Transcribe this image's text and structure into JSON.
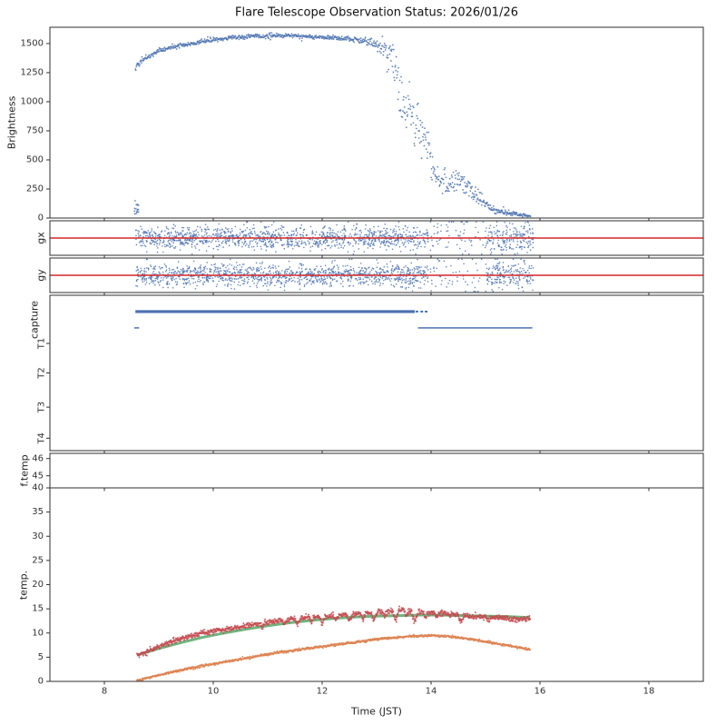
{
  "chart_data": {
    "type": "scatter",
    "title": "Flare Telescope Observation Status: 2026/01/26",
    "xlabel": "Time (JST)",
    "xlim": [
      7,
      19
    ],
    "xticks": [
      8,
      10,
      12,
      14,
      16,
      18
    ],
    "palette": {
      "marker_blue": "#4C72B0",
      "reference_red": "#d62728",
      "temp_red": "#C44E52",
      "temp_green": "#55A868",
      "temp_orange": "#DD8452"
    },
    "panels": [
      {
        "id": "brightness",
        "ylabel": "Brightness",
        "ylim": [
          0,
          1640
        ],
        "yticks": [
          0,
          250,
          500,
          750,
          1000,
          1250,
          1500
        ],
        "series": [
          {
            "name": "brightness-points",
            "type": "noisy-scatter",
            "color": "#4C72B0",
            "r": 0.9,
            "dt": 0.008,
            "keypoints": [
              [
                8.57,
                1280,
                25
              ],
              [
                8.63,
                1325,
                18
              ],
              [
                8.72,
                1365,
                14
              ],
              [
                8.85,
                1395,
                12
              ],
              [
                9.0,
                1435,
                11
              ],
              [
                9.2,
                1465,
                10
              ],
              [
                9.4,
                1488,
                10
              ],
              [
                9.6,
                1502,
                10
              ],
              [
                9.8,
                1516,
                10
              ],
              [
                10.0,
                1530,
                10
              ],
              [
                10.2,
                1544,
                10
              ],
              [
                10.45,
                1554,
                10
              ],
              [
                10.7,
                1562,
                10
              ],
              [
                10.95,
                1565,
                10
              ],
              [
                11.2,
                1567,
                10
              ],
              [
                11.45,
                1566,
                10
              ],
              [
                11.7,
                1560,
                10
              ],
              [
                11.95,
                1556,
                10
              ],
              [
                12.2,
                1549,
                10
              ],
              [
                12.45,
                1543,
                10
              ],
              [
                12.65,
                1535,
                12
              ],
              [
                12.8,
                1522,
                15
              ],
              [
                12.92,
                1506,
                18
              ],
              [
                13.05,
                1470,
                26
              ],
              [
                13.18,
                1428,
                45
              ],
              [
                13.3,
                1372,
                70
              ],
              [
                13.38,
                1190,
                110
              ],
              [
                13.45,
                1000,
                130
              ],
              [
                13.52,
                930,
                125
              ],
              [
                13.58,
                1030,
                120
              ],
              [
                13.64,
                860,
                115
              ],
              [
                13.7,
                770,
                110
              ],
              [
                13.76,
                820,
                100
              ],
              [
                13.82,
                700,
                100
              ],
              [
                13.88,
                730,
                95
              ],
              [
                13.94,
                630,
                90
              ],
              [
                14.0,
                480,
                75
              ],
              [
                14.06,
                390,
                65
              ],
              [
                14.12,
                330,
                60
              ],
              [
                14.18,
                375,
                60
              ],
              [
                14.25,
                315,
                55
              ],
              [
                14.33,
                270,
                50
              ],
              [
                14.42,
                300,
                55
              ],
              [
                14.52,
                330,
                55
              ],
              [
                14.62,
                285,
                50
              ],
              [
                14.72,
                240,
                45
              ],
              [
                14.82,
                200,
                40
              ],
              [
                14.92,
                150,
                33
              ],
              [
                15.02,
                100,
                24
              ],
              [
                15.12,
                75,
                18
              ],
              [
                15.22,
                60,
                14
              ],
              [
                15.32,
                50,
                12
              ],
              [
                15.42,
                42,
                10
              ],
              [
                15.52,
                35,
                8
              ],
              [
                15.62,
                28,
                7
              ],
              [
                15.72,
                24,
                6
              ],
              [
                15.83,
                20,
                5
              ]
            ]
          },
          {
            "name": "startup-cluster",
            "type": "cluster",
            "color": "#4C72B0",
            "r": 0.9,
            "n": 16,
            "trange": [
              8.55,
              8.63
            ],
            "vrange": [
              20,
              150
            ]
          }
        ]
      },
      {
        "id": "gx",
        "ylabel": "gx",
        "ylim": [
          -1,
          1
        ],
        "refline": {
          "value": 0,
          "color": "#d62728"
        },
        "series": [
          {
            "name": "gx-scatter",
            "type": "band-scatter",
            "color": "#4C72B0",
            "r": 0.8,
            "center": 0,
            "segments": [
              [
                8.58,
                13.95,
                0.33,
                230
              ],
              [
                13.98,
                14.75,
                0.55,
                70
              ],
              [
                14.75,
                15.0,
                0.5,
                40
              ],
              [
                15.0,
                15.88,
                0.45,
                220
              ]
            ]
          }
        ]
      },
      {
        "id": "gy",
        "ylabel": "gy",
        "ylim": [
          -1,
          1
        ],
        "refline": {
          "value": 0,
          "color": "#d62728"
        },
        "series": [
          {
            "name": "gy-scatter",
            "type": "band-scatter",
            "color": "#4C72B0",
            "r": 0.8,
            "center": 0,
            "segments": [
              [
                8.58,
                13.95,
                0.33,
                230
              ],
              [
                13.98,
                14.45,
                0.55,
                60
              ],
              [
                14.45,
                14.95,
                0.7,
                50
              ],
              [
                15.0,
                15.88,
                0.45,
                220
              ]
            ]
          }
        ]
      },
      {
        "id": "capture",
        "ylabel": "capture",
        "rows": [
          "T1",
          "T2",
          "T3",
          "T4"
        ],
        "capture": {
          "color": "#4C72B0",
          "segments": [
            {
              "frac": 0.105,
              "t0": 8.57,
              "t1": 13.7,
              "lw": 3.2
            },
            {
              "frac": 0.21,
              "t0": 8.55,
              "t1": 8.64,
              "lw": 1.5
            },
            {
              "frac": 0.21,
              "t0": 13.76,
              "t1": 15.86,
              "lw": 1.5
            }
          ],
          "dots": [
            [
              13.74,
              0.105
            ],
            [
              13.83,
              0.105
            ],
            [
              13.91,
              0.105
            ]
          ]
        }
      },
      {
        "id": "ftemp",
        "ylabel": "f.temp",
        "ylim": [
          44.3,
          46.3
        ],
        "yticks": [
          45,
          46
        ],
        "series": []
      },
      {
        "id": "temp",
        "ylabel": "temp.",
        "ylim": [
          0,
          40
        ],
        "yticks": [
          0,
          5,
          10,
          15,
          20,
          25,
          30,
          35,
          40
        ],
        "series": [
          {
            "name": "orange-series",
            "type": "noisy-scatter",
            "color": "#DD8452",
            "r": 1.0,
            "dt": 0.007,
            "sigma": 0.12,
            "keypoints": [
              [
                8.6,
                0.2
              ],
              [
                8.8,
                0.7
              ],
              [
                9.0,
                1.3
              ],
              [
                9.2,
                1.8
              ],
              [
                9.4,
                2.3
              ],
              [
                9.6,
                2.8
              ],
              [
                9.8,
                3.2
              ],
              [
                10.0,
                3.6
              ],
              [
                10.2,
                4.0
              ],
              [
                10.4,
                4.4
              ],
              [
                10.6,
                4.8
              ],
              [
                10.8,
                5.2
              ],
              [
                11.0,
                5.6
              ],
              [
                11.2,
                6.0
              ],
              [
                11.4,
                6.3
              ],
              [
                11.6,
                6.6
              ],
              [
                11.8,
                6.9
              ],
              [
                12.0,
                7.2
              ],
              [
                12.2,
                7.5
              ],
              [
                12.4,
                7.8
              ],
              [
                12.6,
                8.1
              ],
              [
                12.8,
                8.4
              ],
              [
                13.0,
                8.7
              ],
              [
                13.2,
                8.9
              ],
              [
                13.4,
                9.1
              ],
              [
                13.6,
                9.3
              ],
              [
                13.8,
                9.4
              ],
              [
                14.0,
                9.5
              ],
              [
                14.2,
                9.4
              ],
              [
                14.4,
                9.2
              ],
              [
                14.7,
                8.8
              ],
              [
                15.0,
                8.2
              ],
              [
                15.3,
                7.6
              ],
              [
                15.6,
                7.0
              ],
              [
                15.82,
                6.5
              ]
            ]
          },
          {
            "name": "green-series",
            "type": "line",
            "color": "#55A868",
            "lw": 3,
            "keypoints": [
              [
                8.6,
                5.4
              ],
              [
                9.0,
                6.8
              ],
              [
                9.4,
                8.0
              ],
              [
                9.8,
                9.1
              ],
              [
                10.2,
                10.0
              ],
              [
                10.6,
                10.8
              ],
              [
                11.0,
                11.5
              ],
              [
                11.4,
                12.1
              ],
              [
                11.8,
                12.6
              ],
              [
                12.2,
                13.0
              ],
              [
                12.6,
                13.3
              ],
              [
                13.0,
                13.5
              ],
              [
                13.4,
                13.6
              ],
              [
                13.8,
                13.7
              ],
              [
                14.2,
                13.7
              ],
              [
                14.6,
                13.6
              ],
              [
                15.0,
                13.5
              ],
              [
                15.4,
                13.4
              ],
              [
                15.82,
                13.2
              ]
            ]
          },
          {
            "name": "red-series",
            "type": "noisy-scatter",
            "color": "#C44E52",
            "r": 1.0,
            "dt": 0.006,
            "sigma": 0.28,
            "keypoints": [
              [
                8.6,
                5.3
              ],
              [
                8.8,
                6.3
              ],
              [
                9.0,
                7.2
              ],
              [
                9.2,
                8.0
              ],
              [
                9.4,
                8.8
              ],
              [
                9.6,
                9.4
              ],
              [
                9.8,
                10.0
              ],
              [
                10.0,
                10.4
              ],
              [
                10.2,
                10.8
              ],
              [
                10.4,
                11.0
              ],
              [
                10.6,
                11.4
              ],
              [
                10.8,
                11.9
              ],
              [
                11.0,
                12.3
              ],
              [
                11.2,
                12.6
              ],
              [
                11.4,
                12.9
              ],
              [
                11.6,
                13.1
              ],
              [
                11.8,
                13.3
              ],
              [
                12.0,
                13.4
              ],
              [
                12.2,
                13.6
              ],
              [
                12.4,
                13.8
              ],
              [
                12.6,
                14.0
              ],
              [
                12.8,
                14.1
              ],
              [
                13.0,
                14.3
              ],
              [
                13.2,
                14.5
              ],
              [
                13.4,
                14.7
              ],
              [
                13.5,
                14.8
              ],
              [
                13.6,
                14.6
              ],
              [
                13.8,
                14.4
              ],
              [
                14.0,
                14.2
              ],
              [
                14.2,
                14.0
              ],
              [
                14.4,
                13.8
              ],
              [
                14.6,
                13.6
              ],
              [
                14.8,
                13.4
              ],
              [
                15.0,
                13.3
              ],
              [
                15.2,
                13.2
              ],
              [
                15.4,
                13.1
              ],
              [
                15.6,
                13.0
              ],
              [
                15.82,
                12.9
              ]
            ],
            "dips": [
              [
                10.9,
                0.8,
                0.05
              ],
              [
                11.3,
                0.9,
                0.05
              ],
              [
                11.55,
                1.4,
                0.06
              ],
              [
                11.8,
                1.0,
                0.05
              ],
              [
                12.0,
                1.6,
                0.05
              ],
              [
                12.25,
                1.1,
                0.05
              ],
              [
                12.5,
                1.5,
                0.06
              ],
              [
                12.75,
                1.2,
                0.05
              ],
              [
                12.95,
                1.8,
                0.06
              ],
              [
                13.15,
                1.0,
                0.05
              ],
              [
                13.35,
                2.0,
                0.06
              ],
              [
                13.55,
                1.3,
                0.05
              ],
              [
                13.7,
                2.2,
                0.07
              ],
              [
                13.9,
                1.0,
                0.05
              ],
              [
                14.1,
                0.8,
                0.05
              ],
              [
                14.55,
                1.2,
                0.06
              ],
              [
                15.05,
                0.7,
                0.05
              ],
              [
                15.5,
                0.5,
                0.05
              ]
            ]
          }
        ]
      }
    ]
  }
}
